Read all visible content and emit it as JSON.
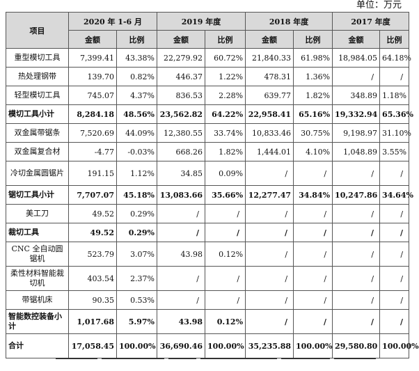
{
  "unit_label": "单位：万元",
  "header": {
    "item": "项目",
    "periods": [
      "2020 年 1-6 月",
      "2019 年度",
      "2018 年度",
      "2017 年度"
    ],
    "amount": "金额",
    "ratio": "比例"
  },
  "rows": [
    {
      "name": "重型模切工具",
      "subtotal": false,
      "tall": false,
      "cells": [
        "7,399.41",
        "43.38%",
        "22,279.92",
        "60.72%",
        "21,840.33",
        "61.98%",
        "18,984.05",
        "64.18%"
      ]
    },
    {
      "name": "热处理钢带",
      "subtotal": false,
      "tall": false,
      "cells": [
        "139.70",
        "0.82%",
        "446.37",
        "1.22%",
        "478.31",
        "1.36%",
        "/",
        "/"
      ]
    },
    {
      "name": "轻型模切工具",
      "subtotal": false,
      "tall": false,
      "cells": [
        "745.07",
        "4.37%",
        "836.53",
        "2.28%",
        "639.77",
        "1.82%",
        "348.89",
        "1.18%"
      ]
    },
    {
      "name": "模切工具小计",
      "subtotal": true,
      "tall": false,
      "cells": [
        "8,284.18",
        "48.56%",
        "23,562.82",
        "64.22%",
        "22,958.41",
        "65.16%",
        "19,332.94",
        "65.36%"
      ]
    },
    {
      "name": "双金属带锯条",
      "subtotal": false,
      "tall": false,
      "cells": [
        "7,520.69",
        "44.09%",
        "12,380.55",
        "33.74%",
        "10,833.46",
        "30.75%",
        "9,198.97",
        "31.10%"
      ]
    },
    {
      "name": "双金属复合材",
      "subtotal": false,
      "tall": false,
      "cells": [
        "-4.77",
        "-0.03%",
        "668.26",
        "1.82%",
        "1,444.01",
        "4.10%",
        "1,048.89",
        "3.55%"
      ]
    },
    {
      "name": "冷切金属圆锯片",
      "subtotal": false,
      "tall": true,
      "cells": [
        "191.15",
        "1.12%",
        "34.85",
        "0.09%",
        "/",
        "/",
        "/",
        "/"
      ]
    },
    {
      "name": "锯切工具小计",
      "subtotal": true,
      "tall": false,
      "cells": [
        "7,707.07",
        "45.18%",
        "13,083.66",
        "35.66%",
        "12,277.47",
        "34.84%",
        "10,247.86",
        "34.64%"
      ]
    },
    {
      "name": "美工刀",
      "subtotal": false,
      "tall": false,
      "cells": [
        "49.52",
        "0.29%",
        "/",
        "/",
        "/",
        "/",
        "/",
        "/"
      ]
    },
    {
      "name": "裁切工具",
      "subtotal": true,
      "tall": false,
      "cells": [
        "49.52",
        "0.29%",
        "/",
        "/",
        "/",
        "/",
        "/",
        "/"
      ]
    },
    {
      "name": "CNC 全自动圆锯机",
      "subtotal": false,
      "tall": true,
      "cells": [
        "523.79",
        "3.07%",
        "43.98",
        "0.12%",
        "/",
        "/",
        "/",
        "/"
      ]
    },
    {
      "name": "柔性材料智能裁切机",
      "subtotal": false,
      "tall": true,
      "cells": [
        "403.54",
        "2.37%",
        "/",
        "/",
        "/",
        "/",
        "/",
        "/"
      ]
    },
    {
      "name": "带锯机床",
      "subtotal": false,
      "tall": false,
      "cells": [
        "90.35",
        "0.53%",
        "/",
        "/",
        "/",
        "/",
        "/",
        "/"
      ]
    },
    {
      "name": "智能数控装备小计",
      "subtotal": true,
      "tall": true,
      "cells": [
        "1,017.68",
        "5.97%",
        "43.98",
        "0.12%",
        "/",
        "/",
        "/",
        "/"
      ]
    },
    {
      "name": "合计",
      "subtotal": true,
      "tall": true,
      "cells": [
        "17,058.45",
        "100.00%",
        "36,690.46",
        "100.00%",
        "35,235.88",
        "100.00%",
        "29,580.80",
        "100.00%"
      ]
    }
  ]
}
